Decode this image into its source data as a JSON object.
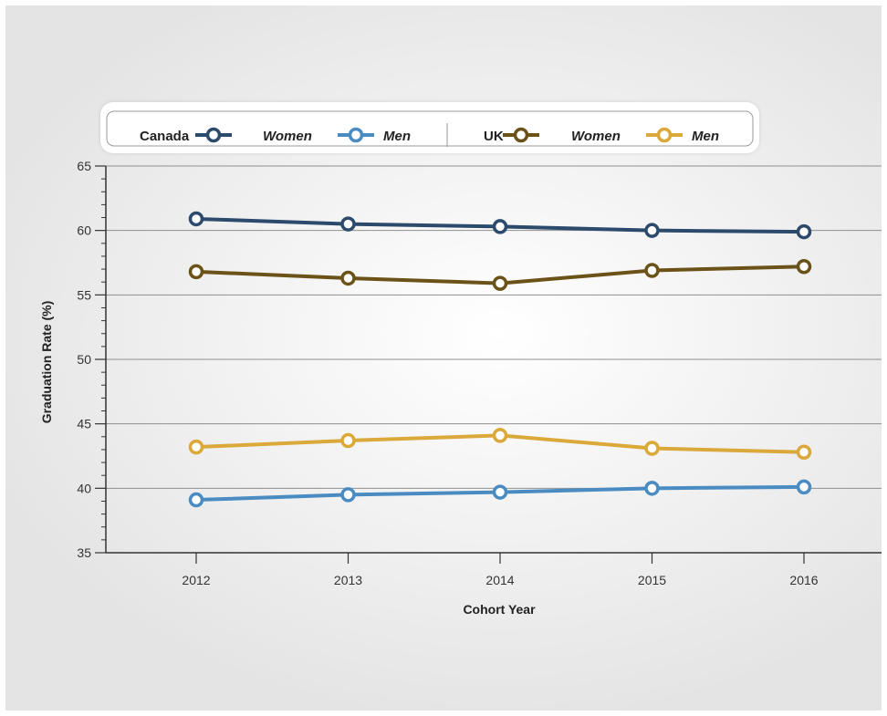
{
  "chart_data": {
    "type": "line",
    "xlabel": "Cohort Year",
    "ylabel": "Graduation Rate (%)",
    "categories": [
      "2012",
      "2013",
      "2014",
      "2015",
      "2016"
    ],
    "ylim": [
      35,
      65
    ],
    "yticks": [
      "35",
      "40",
      "45",
      "50",
      "55",
      "60",
      "65"
    ],
    "grid": "horizontal",
    "legend_position": "top",
    "legend_groups": [
      {
        "label": "Canada",
        "series": [
          "Women",
          "Men"
        ]
      },
      {
        "label": "UK",
        "series": [
          "Women",
          "Men"
        ]
      }
    ],
    "series": [
      {
        "group": "Canada",
        "name": "Women",
        "color": "#2c4a6b",
        "values": [
          60.9,
          60.5,
          60.3,
          60.0,
          59.9
        ]
      },
      {
        "group": "Canada",
        "name": "Men",
        "color": "#4a8cc2",
        "values": [
          39.1,
          39.5,
          39.7,
          40.0,
          40.1
        ]
      },
      {
        "group": "UK",
        "name": "Women",
        "color": "#6b5219",
        "values": [
          56.8,
          56.3,
          55.9,
          56.9,
          57.2
        ]
      },
      {
        "group": "UK",
        "name": "Men",
        "color": "#dba83a",
        "values": [
          43.2,
          43.7,
          44.1,
          43.1,
          42.8
        ]
      }
    ]
  }
}
